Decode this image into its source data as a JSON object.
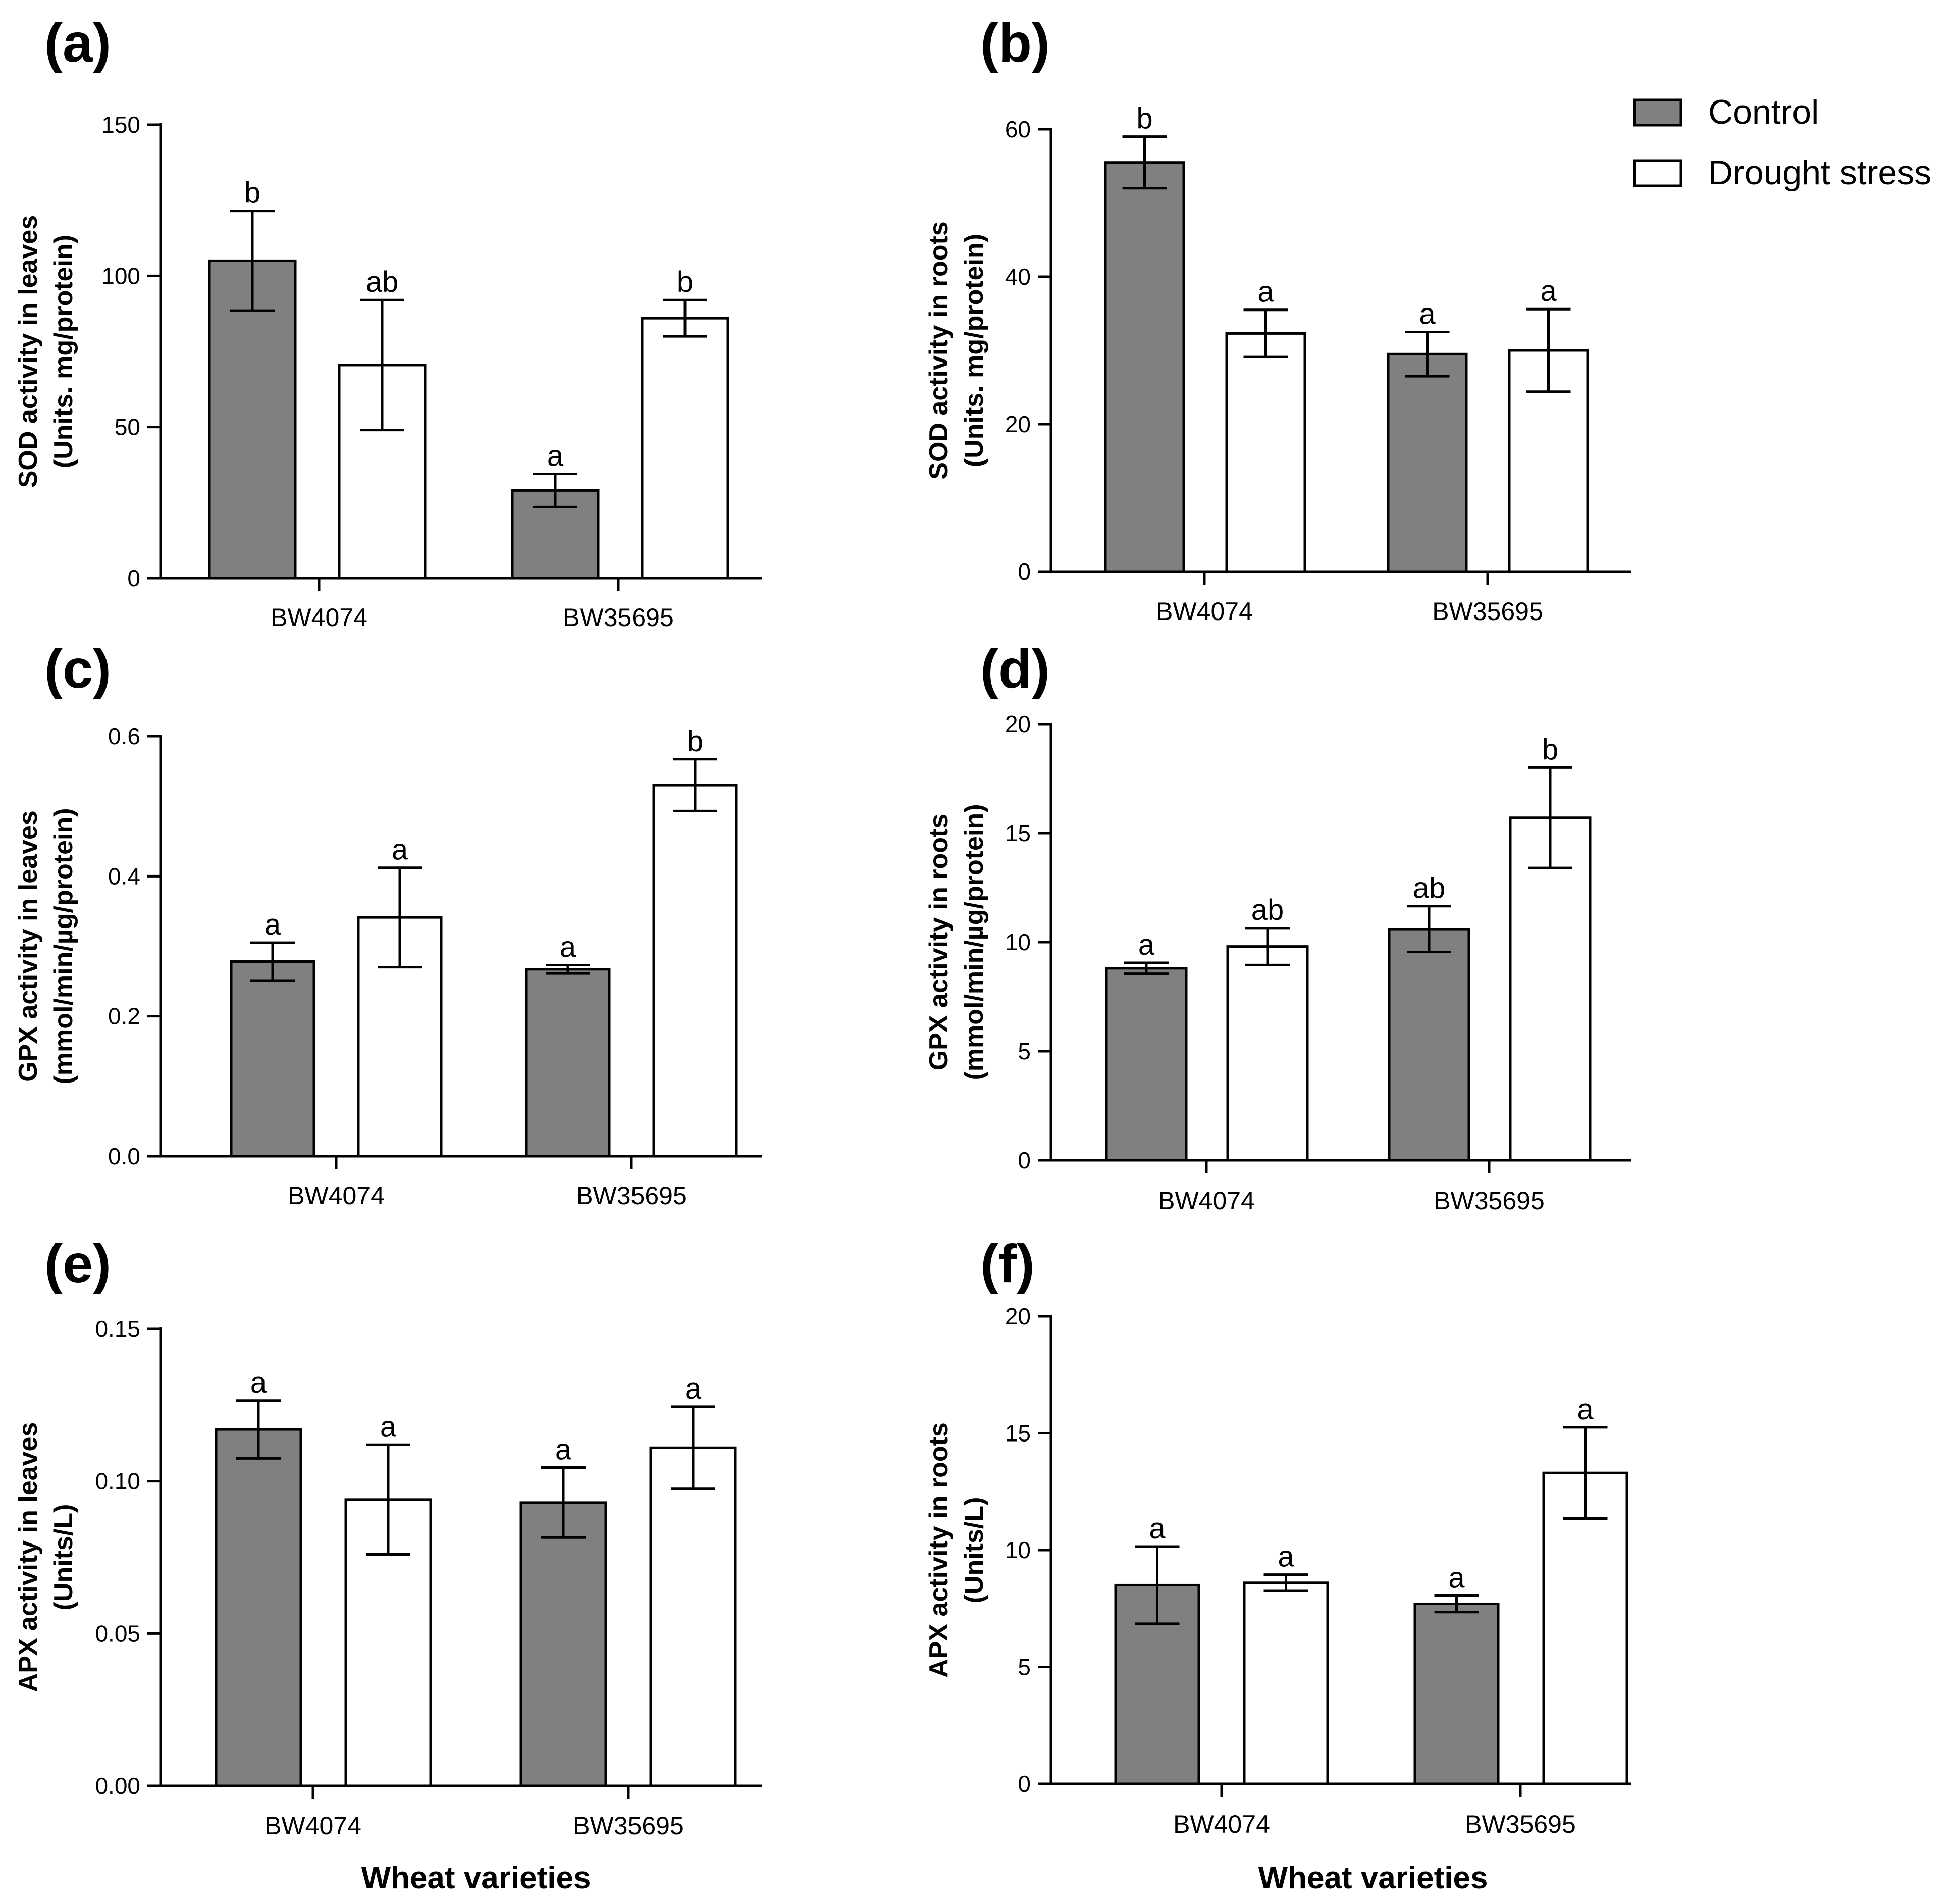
{
  "legend": {
    "position": "top-right",
    "entries": [
      {
        "name": "Control",
        "color": "#808080"
      },
      {
        "name": "Drought stress",
        "color": "#ffffff"
      }
    ]
  },
  "chart_data": [
    {
      "type": "bar",
      "panel": "(a)",
      "ylabel_line1": "SOD activity in leaves",
      "ylabel_line2": "(Units. mg/protein)",
      "xlabel": "",
      "categories": [
        "BW4074",
        "BW35695"
      ],
      "ylim": [
        0,
        150
      ],
      "yticks": [
        "0",
        "50",
        "100",
        "150"
      ],
      "series": [
        {
          "name": "Control",
          "values": [
            105,
            29
          ],
          "errors": [
            16.5,
            5.5
          ],
          "letters": [
            "b",
            "a"
          ]
        },
        {
          "name": "Drought stress",
          "values": [
            70.5,
            86
          ],
          "errors": [
            21.5,
            6
          ],
          "letters": [
            "ab",
            "b"
          ]
        }
      ]
    },
    {
      "type": "bar",
      "panel": "(b)",
      "ylabel_line1": "SOD activity in roots",
      "ylabel_line2": "(Units. mg/protein)",
      "xlabel": "",
      "categories": [
        "BW4074",
        "BW35695"
      ],
      "ylim": [
        0,
        60
      ],
      "yticks": [
        "0",
        "20",
        "40",
        "60"
      ],
      "series": [
        {
          "name": "Control",
          "values": [
            55.5,
            29.5
          ],
          "errors": [
            3.5,
            3
          ],
          "letters": [
            "b",
            "a"
          ]
        },
        {
          "name": "Drought stress",
          "values": [
            32.3,
            30
          ],
          "errors": [
            3.2,
            5.6
          ],
          "letters": [
            "a",
            "a"
          ]
        }
      ]
    },
    {
      "type": "bar",
      "panel": "(c)",
      "ylabel_line1": "GPX activity in leaves",
      "ylabel_line2": "(mmol/min/µg/protein)",
      "xlabel": "",
      "categories": [
        "BW4074",
        "BW35695"
      ],
      "ylim": [
        0,
        0.6
      ],
      "yticks": [
        "0.0",
        "0.2",
        "0.4",
        "0.6"
      ],
      "series": [
        {
          "name": "Control",
          "values": [
            0.278,
            0.267
          ],
          "errors": [
            0.027,
            0.006
          ],
          "letters": [
            "a",
            "a"
          ]
        },
        {
          "name": "Drought stress",
          "values": [
            0.341,
            0.53
          ],
          "errors": [
            0.071,
            0.037
          ],
          "letters": [
            "a",
            "b"
          ]
        }
      ]
    },
    {
      "type": "bar",
      "panel": "(d)",
      "ylabel_line1": "GPX activity in roots",
      "ylabel_line2": "(mmol/min/µg/protein)",
      "xlabel": "",
      "categories": [
        "BW4074",
        "BW35695"
      ],
      "ylim": [
        0,
        20
      ],
      "yticks": [
        "0",
        "5",
        "10",
        "15",
        "20"
      ],
      "series": [
        {
          "name": "Control",
          "values": [
            8.8,
            10.6
          ],
          "errors": [
            0.25,
            1.05
          ],
          "letters": [
            "a",
            "ab"
          ]
        },
        {
          "name": "Drought stress",
          "values": [
            9.8,
            15.7
          ],
          "errors": [
            0.85,
            2.3
          ],
          "letters": [
            "ab",
            "b"
          ]
        }
      ]
    },
    {
      "type": "bar",
      "panel": "(e)",
      "ylabel_line1": "APX activity in leaves",
      "ylabel_line2": "(Units/L)",
      "xlabel": "Wheat varieties",
      "categories": [
        "BW4074",
        "BW35695"
      ],
      "ylim": [
        0,
        0.15
      ],
      "yticks": [
        "0.00",
        "0.05",
        "0.10",
        "0.15"
      ],
      "series": [
        {
          "name": "Control",
          "values": [
            0.117,
            0.093
          ],
          "errors": [
            0.0095,
            0.0115
          ],
          "letters": [
            "a",
            "a"
          ]
        },
        {
          "name": "Drought stress",
          "values": [
            0.094,
            0.111
          ],
          "errors": [
            0.018,
            0.0135
          ],
          "letters": [
            "a",
            "a"
          ]
        }
      ]
    },
    {
      "type": "bar",
      "panel": "(f)",
      "ylabel_line1": "APX activity in roots",
      "ylabel_line2": "(Units/L)",
      "xlabel": "Wheat varieties",
      "categories": [
        "BW4074",
        "BW35695"
      ],
      "ylim": [
        0,
        20
      ],
      "yticks": [
        "0",
        "5",
        "10",
        "15",
        "20"
      ],
      "series": [
        {
          "name": "Control",
          "values": [
            8.5,
            7.7
          ],
          "errors": [
            1.65,
            0.35
          ],
          "letters": [
            "a",
            "a"
          ]
        },
        {
          "name": "Drought stress",
          "values": [
            8.6,
            13.3
          ],
          "errors": [
            0.35,
            1.95
          ],
          "letters": [
            "a",
            "a"
          ]
        }
      ]
    }
  ]
}
